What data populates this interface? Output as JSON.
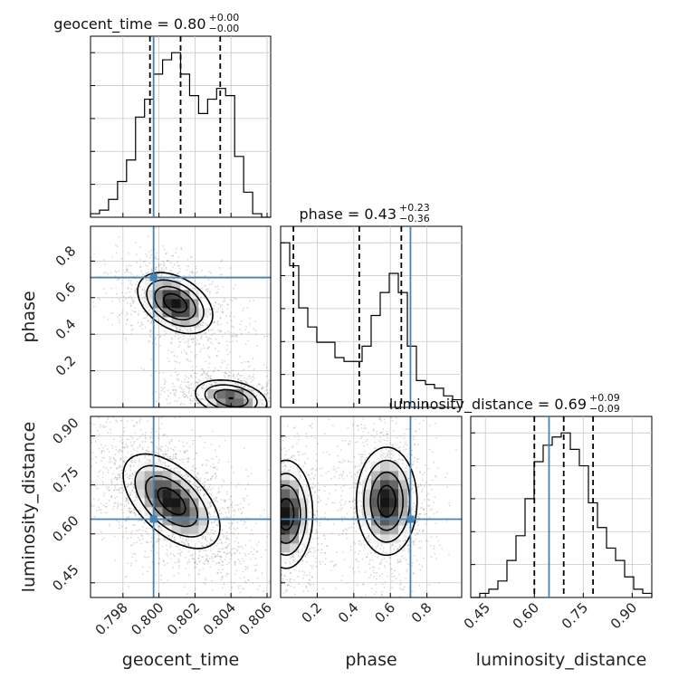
{
  "chart_data": {
    "type": "corner",
    "parameters": [
      "geocent_time",
      "phase",
      "luminosity_distance"
    ],
    "truths": {
      "geocent_time": 0.7997,
      "phase": 0.71,
      "luminosity_distance": 0.645
    },
    "titles": [
      {
        "param": "geocent_time",
        "text": "geocent_time = 0.80",
        "plus": "+0.00",
        "minus": "−0.00"
      },
      {
        "param": "phase",
        "text": "phase = 0.43",
        "plus": "+0.23",
        "minus": "−0.36"
      },
      {
        "param": "luminosity_distance",
        "text": "luminosity_distance = 0.69",
        "plus": "+0.09",
        "minus": "−0.09"
      }
    ],
    "axes": {
      "geocent_time": {
        "label": "geocent_time",
        "range": [
          0.7962,
          0.8062
        ],
        "ticks": [
          0.798,
          0.8,
          0.802,
          0.804,
          0.806
        ],
        "tick_labels": [
          "0.798",
          "0.800",
          "0.802",
          "0.804",
          "0.806"
        ]
      },
      "phase": {
        "label": "phase",
        "range": [
          0.0,
          0.99
        ],
        "ticks": [
          0.2,
          0.4,
          0.6,
          0.8
        ],
        "tick_labels": [
          "0.2",
          "0.4",
          "0.6",
          "0.8"
        ]
      },
      "luminosity_distance": {
        "label": "luminosity_distance",
        "range": [
          0.405,
          0.96
        ],
        "ticks": [
          0.45,
          0.6,
          0.75,
          0.9
        ],
        "tick_labels": [
          "0.45",
          "0.60",
          "0.75",
          "0.90"
        ]
      }
    },
    "histograms": {
      "geocent_time": {
        "bin_edges": [
          0.7962,
          0.7967,
          0.7972,
          0.7977,
          0.7982,
          0.7987,
          0.7992,
          0.7997,
          0.8002,
          0.8007,
          0.8012,
          0.8017,
          0.8022,
          0.8027,
          0.8032,
          0.8037,
          0.8042,
          0.8047,
          0.8052,
          0.8057,
          0.8062
        ],
        "counts": [
          1,
          2,
          5,
          10,
          16,
          28,
          33,
          40,
          44,
          46,
          40,
          34,
          29,
          33,
          36,
          34,
          17,
          7,
          1,
          0
        ],
        "quantiles": [
          0.7995,
          0.8012,
          0.8034
        ]
      },
      "phase": {
        "bin_edges": [
          0.0,
          0.0495,
          0.099,
          0.1485,
          0.198,
          0.2475,
          0.297,
          0.3465,
          0.396,
          0.4455,
          0.495,
          0.5445,
          0.594,
          0.6435,
          0.693,
          0.7425,
          0.792,
          0.8415,
          0.891,
          0.9405,
          0.99
        ],
        "counts": [
          43,
          37,
          26,
          21,
          17,
          17,
          13,
          12,
          12,
          16,
          24,
          30,
          35,
          30,
          16,
          7,
          6,
          5,
          3,
          2
        ],
        "quantiles": [
          0.07,
          0.43,
          0.66
        ]
      },
      "luminosity_distance": {
        "bin_edges": [
          0.405,
          0.43275,
          0.4605,
          0.48825,
          0.516,
          0.54375,
          0.5715,
          0.59925,
          0.627,
          0.65475,
          0.6825,
          0.71025,
          0.738,
          0.76575,
          0.7935,
          0.82125,
          0.849,
          0.87675,
          0.9045,
          0.93225,
          0.96
        ],
        "counts": [
          0,
          1,
          2,
          4,
          9,
          15,
          24,
          33,
          37,
          39,
          40,
          36,
          32,
          23,
          17,
          12,
          9,
          5,
          2,
          1
        ],
        "quantiles": [
          0.6,
          0.69,
          0.78
        ]
      }
    },
    "density_2d": [
      {
        "x": "geocent_time",
        "y": "phase",
        "peaks": [
          {
            "x": 0.8009,
            "y": 0.57,
            "sx": 0.001,
            "sy": 0.08,
            "rho": -0.4,
            "w": 0.55
          },
          {
            "x": 0.804,
            "y": 0.05,
            "sx": 0.001,
            "sy": 0.05,
            "rho": -0.3,
            "w": 0.45
          }
        ]
      },
      {
        "x": "geocent_time",
        "y": "luminosity_distance",
        "peaks": [
          {
            "x": 0.8007,
            "y": 0.7,
            "sx": 0.0013,
            "sy": 0.07,
            "rho": -0.55,
            "w": 1.0
          }
        ]
      },
      {
        "x": "phase",
        "y": "luminosity_distance",
        "peaks": [
          {
            "x": 0.03,
            "y": 0.66,
            "sx": 0.07,
            "sy": 0.08,
            "rho": 0.0,
            "w": 0.5
          },
          {
            "x": 0.58,
            "y": 0.7,
            "sx": 0.08,
            "sy": 0.08,
            "rho": 0.0,
            "w": 0.5
          }
        ]
      }
    ],
    "truth_color": "#4682b4",
    "hist_color": "#000000",
    "grid": true
  }
}
